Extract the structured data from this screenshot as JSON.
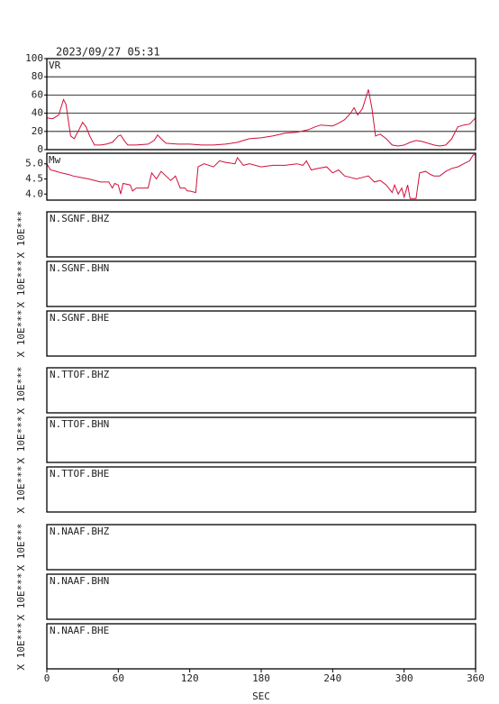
{
  "title": "2023/09/27 05:31",
  "chart_data": [
    {
      "type": "line",
      "label": "VR",
      "xlim": [
        0,
        360
      ],
      "ylim": [
        0,
        100
      ],
      "yticks": [
        0,
        20,
        40,
        60,
        80,
        100
      ],
      "grid": true,
      "x": [
        0,
        5,
        10,
        14,
        16,
        20,
        23,
        27,
        30,
        33,
        36,
        40,
        45,
        50,
        55,
        60,
        62,
        65,
        68,
        75,
        85,
        90,
        93,
        96,
        100,
        110,
        120,
        130,
        140,
        150,
        160,
        170,
        180,
        190,
        200,
        210,
        220,
        225,
        230,
        240,
        245,
        250,
        255,
        258,
        261,
        265,
        270,
        273,
        276,
        280,
        285,
        290,
        295,
        300,
        305,
        310,
        315,
        320,
        325,
        330,
        335,
        340,
        345,
        350,
        355,
        360
      ],
      "series": [
        {
          "color": "#d0103a",
          "values": [
            35,
            34,
            38,
            55,
            50,
            15,
            12,
            22,
            30,
            25,
            15,
            5,
            5,
            6,
            8,
            15,
            16,
            10,
            5,
            5,
            6,
            10,
            16,
            12,
            7,
            6,
            6,
            5,
            5,
            6,
            8,
            12,
            13,
            15,
            18,
            19,
            22,
            25,
            27,
            26,
            29,
            33,
            40,
            46,
            38,
            45,
            66,
            45,
            15,
            17,
            12,
            5,
            4,
            5,
            8,
            10,
            9,
            7,
            5,
            4,
            5,
            12,
            25,
            27,
            28,
            35
          ]
        }
      ]
    },
    {
      "type": "line",
      "label": "Mw",
      "xlim": [
        0,
        360
      ],
      "ylim": [
        3.8,
        5.35
      ],
      "yticks": [
        {
          "value": 4,
          "label": "4.0"
        },
        4.5,
        {
          "value": 5,
          "label": "5.0"
        }
      ],
      "grid": false,
      "x": [
        0,
        3,
        8,
        12,
        18,
        22,
        28,
        35,
        45,
        52,
        55,
        57,
        60,
        62,
        64,
        70,
        72,
        75,
        85,
        88,
        92,
        96,
        100,
        104,
        108,
        112,
        116,
        118,
        120,
        125,
        127,
        132,
        140,
        145,
        150,
        158,
        160,
        165,
        170,
        180,
        190,
        200,
        210,
        215,
        218,
        222,
        228,
        235,
        240,
        245,
        250,
        255,
        260,
        265,
        270,
        275,
        280,
        285,
        290,
        292,
        295,
        298,
        300,
        303,
        305,
        310,
        313,
        318,
        322,
        325,
        330,
        335,
        340,
        345,
        350,
        355,
        358,
        360
      ],
      "series": [
        {
          "color": "#d0103a",
          "values": [
            5.0,
            4.8,
            4.75,
            4.7,
            4.65,
            4.6,
            4.55,
            4.5,
            4.4,
            4.4,
            4.2,
            4.35,
            4.3,
            4.0,
            4.35,
            4.3,
            4.1,
            4.2,
            4.2,
            4.7,
            4.5,
            4.75,
            4.6,
            4.45,
            4.6,
            4.2,
            4.2,
            4.1,
            4.1,
            4.05,
            4.9,
            5.0,
            4.9,
            5.1,
            5.05,
            5.0,
            5.2,
            4.95,
            5.0,
            4.9,
            4.95,
            4.95,
            5.0,
            4.95,
            5.1,
            4.8,
            4.85,
            4.9,
            4.7,
            4.8,
            4.6,
            4.55,
            4.5,
            4.55,
            4.6,
            4.4,
            4.45,
            4.3,
            4.05,
            4.3,
            4.0,
            4.2,
            3.9,
            4.3,
            3.85,
            3.85,
            4.7,
            4.75,
            4.65,
            4.6,
            4.6,
            4.75,
            4.85,
            4.9,
            5.0,
            5.1,
            5.3,
            5.3
          ]
        }
      ]
    }
  ],
  "panels": [
    {
      "label": "N.SGNF.BHZ",
      "side": "X 10E***"
    },
    {
      "label": "N.SGNF.BHN",
      "side": "X 10E***"
    },
    {
      "label": "N.SGNF.BHE",
      "side": "X 10E***"
    },
    {
      "label": "N.TTOF.BHZ",
      "side": "X 10E***"
    },
    {
      "label": "N.TTOF.BHN",
      "side": "X 10E***"
    },
    {
      "label": "N.TTOF.BHE",
      "side": "X 10E***"
    },
    {
      "label": "N.NAAF.BHZ",
      "side": "X 10E***"
    },
    {
      "label": "N.NAAF.BHN",
      "side": "X 10E***"
    },
    {
      "label": "N.NAAF.BHE",
      "side": "X 10E***"
    }
  ],
  "x_axis": {
    "label": "SEC",
    "xlim": [
      0,
      360
    ],
    "xticks": [
      0,
      60,
      120,
      180,
      240,
      300,
      360
    ]
  }
}
